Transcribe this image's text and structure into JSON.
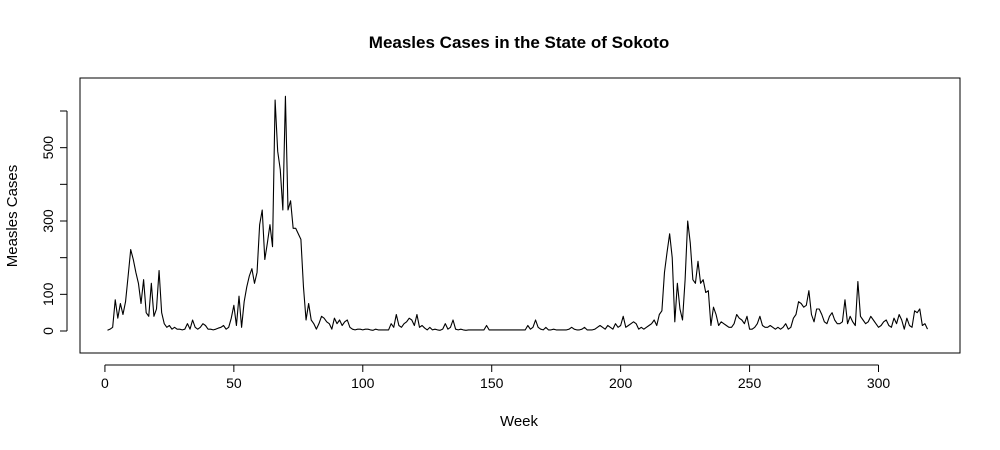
{
  "chart_data": {
    "type": "line",
    "title": "Measles Cases in the State of Sokoto",
    "xlabel": "Week",
    "ylabel": "Measles Cases",
    "xlim": [
      1,
      319
    ],
    "ylim": [
      -30,
      660
    ],
    "xticks": [
      0,
      50,
      100,
      150,
      200,
      250,
      300
    ],
    "yticks": [
      0,
      100,
      300,
      500
    ],
    "ytick_labels": [
      "0",
      "100",
      "300",
      "500"
    ],
    "y_minor_ticks": [
      200,
      400,
      600
    ],
    "grid": false,
    "line_color": "#000000",
    "series": [
      {
        "values": [
          2,
          5,
          10,
          85,
          35,
          75,
          45,
          80,
          150,
          222,
          195,
          160,
          130,
          75,
          140,
          50,
          40,
          130,
          40,
          60,
          165,
          50,
          20,
          10,
          15,
          5,
          10,
          5,
          5,
          3,
          5,
          20,
          5,
          30,
          10,
          5,
          10,
          20,
          15,
          5,
          5,
          3,
          5,
          8,
          10,
          15,
          5,
          10,
          35,
          70,
          15,
          95,
          10,
          80,
          120,
          150,
          170,
          130,
          160,
          290,
          330,
          195,
          240,
          290,
          230,
          630,
          490,
          440,
          330,
          640,
          330,
          355,
          280,
          280,
          265,
          250,
          120,
          30,
          75,
          30,
          20,
          5,
          20,
          40,
          35,
          25,
          20,
          5,
          35,
          20,
          30,
          15,
          25,
          30,
          10,
          5,
          3,
          5,
          5,
          3,
          5,
          5,
          3,
          2,
          5,
          3,
          3,
          3,
          3,
          3,
          20,
          10,
          45,
          15,
          10,
          20,
          25,
          35,
          30,
          15,
          45,
          10,
          15,
          8,
          3,
          10,
          3,
          5,
          3,
          2,
          5,
          20,
          5,
          10,
          30,
          5,
          3,
          5,
          3,
          2,
          3,
          3,
          3,
          3,
          3,
          3,
          3,
          15,
          3,
          3,
          3,
          3,
          3,
          3,
          3,
          3,
          3,
          3,
          3,
          3,
          3,
          3,
          3,
          15,
          5,
          10,
          30,
          10,
          5,
          3,
          10,
          3,
          3,
          5,
          3,
          3,
          3,
          3,
          3,
          5,
          10,
          5,
          3,
          3,
          5,
          10,
          3,
          3,
          3,
          5,
          10,
          15,
          10,
          5,
          15,
          10,
          5,
          20,
          10,
          15,
          40,
          10,
          15,
          20,
          25,
          20,
          5,
          10,
          5,
          10,
          15,
          20,
          30,
          15,
          45,
          55,
          160,
          215,
          265,
          200,
          25,
          130,
          60,
          30,
          140,
          300,
          240,
          140,
          130,
          190,
          130,
          140,
          105,
          110,
          15,
          65,
          45,
          15,
          25,
          20,
          15,
          10,
          10,
          20,
          45,
          35,
          30,
          20,
          40,
          5,
          5,
          10,
          20,
          40,
          15,
          10,
          10,
          15,
          10,
          5,
          10,
          5,
          10,
          20,
          5,
          10,
          35,
          45,
          80,
          75,
          65,
          70,
          110,
          45,
          25,
          60,
          60,
          45,
          25,
          20,
          40,
          50,
          30,
          20,
          20,
          25,
          85,
          20,
          40,
          25,
          15,
          135,
          40,
          30,
          20,
          25,
          40,
          30,
          20,
          10,
          15,
          25,
          30,
          15,
          10,
          35,
          20,
          45,
          30,
          5,
          35,
          15,
          10,
          55,
          50,
          60,
          15,
          20,
          5
        ]
      }
    ]
  }
}
